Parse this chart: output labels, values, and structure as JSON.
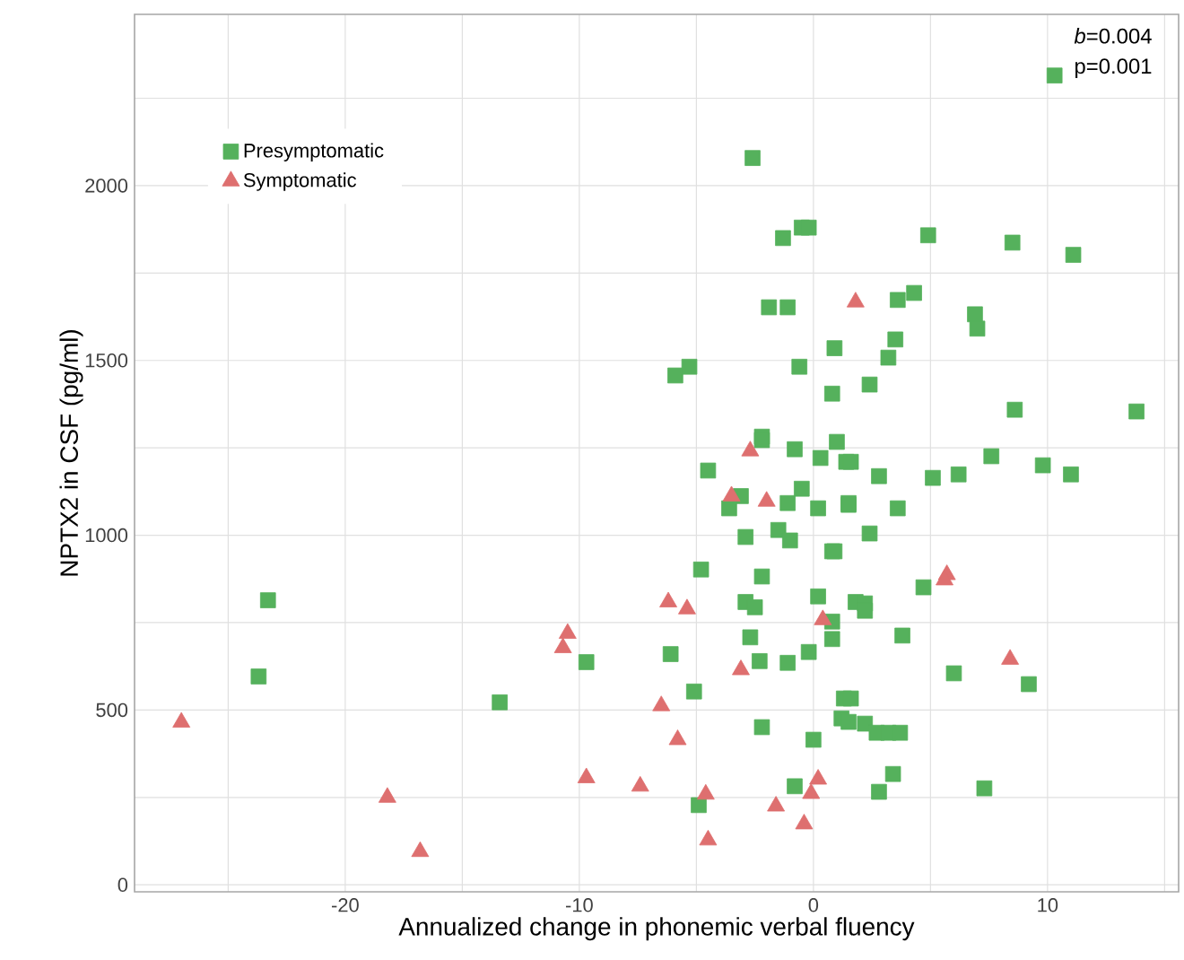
{
  "chart_data": {
    "type": "scatter",
    "xlabel": "Annualized change in phonemic verbal fluency",
    "ylabel": "NPTX2 in CSF (pg/ml)",
    "annotations": [
      "*b*=0.004",
      "p=0.001"
    ],
    "xlim": [
      -29,
      15.6
    ],
    "ylim": [
      -20,
      2490
    ],
    "xticks": [
      {
        "value": -25,
        "label": null
      },
      -20,
      {
        "value": -15,
        "label": null
      },
      -10,
      {
        "value": -5,
        "label": null
      },
      0,
      {
        "value": 5,
        "label": null
      },
      10,
      {
        "value": 15,
        "label": null
      }
    ],
    "yticks": [
      0,
      {
        "value": 250,
        "label": null
      },
      500,
      {
        "value": 750,
        "label": null
      },
      1000,
      {
        "value": 1250,
        "label": null
      },
      1500,
      {
        "value": 1750,
        "label": null
      },
      2000,
      {
        "value": 2250,
        "label": null
      }
    ],
    "grid": true,
    "legend": "top left",
    "series": [
      {
        "name": "Presymptomatic",
        "color": "#55b15c",
        "marker": "square",
        "x": [
          10.3,
          -2.6,
          -1.3,
          -0.5,
          -0.2,
          4.9,
          8.5,
          11.1,
          -1.9,
          -1.1,
          3.6,
          4.3,
          6.9,
          7.0,
          3.5,
          3.2,
          0.9,
          -0.6,
          -5.9,
          -5.3,
          0.8,
          2.4,
          8.6,
          13.8,
          -2.2,
          -2.2,
          -0.8,
          1.0,
          0.3,
          1.4,
          1.6,
          -4.5,
          2.8,
          5.1,
          6.2,
          7.6,
          9.8,
          11.0,
          -3.1,
          -3.6,
          -1.1,
          -0.5,
          0.2,
          1.5,
          1.5,
          3.6,
          -2.9,
          -1.5,
          -1.0,
          2.4,
          0.8,
          0.9,
          -4.8,
          -2.2,
          4.7,
          -2.9,
          -2.5,
          0.2,
          1.8,
          2.2,
          2.2,
          0.8,
          0.8,
          -2.7,
          3.8,
          -6.1,
          -2.3,
          -1.1,
          -0.2,
          6.0,
          9.2,
          -5.1,
          1.3,
          1.6,
          1.2,
          1.5,
          2.2,
          2.7,
          3.2,
          3.7,
          -2.2,
          0.0,
          -4.9,
          -0.8,
          2.8,
          3.4,
          7.3,
          -23.3,
          -23.7,
          -13.4,
          -9.7
        ],
        "values": [
          2315,
          2079,
          1850,
          1880,
          1880,
          1858,
          1837,
          1802,
          1652,
          1652,
          1673,
          1693,
          1632,
          1591,
          1560,
          1508,
          1535,
          1482,
          1457,
          1482,
          1405,
          1431,
          1359,
          1354,
          1282,
          1272,
          1246,
          1267,
          1221,
          1210,
          1210,
          1185,
          1169,
          1164,
          1174,
          1226,
          1200,
          1174,
          1112,
          1077,
          1092,
          1133,
          1077,
          1087,
          1092,
          1077,
          995,
          1015,
          985,
          1005,
          954,
          954,
          902,
          882,
          851,
          809,
          794,
          825,
          809,
          805,
          784,
          753,
          703,
          708,
          713,
          660,
          640,
          635,
          666,
          605,
          574,
          553,
          533,
          533,
          476,
          466,
          461,
          435,
          435,
          435,
          451,
          415,
          228,
          282,
          266,
          317,
          276,
          814,
          596,
          522,
          637
        ]
      },
      {
        "name": "Symptomatic",
        "color": "#de6f6f",
        "marker": "triangle",
        "x": [
          1.8,
          -2.7,
          -3.5,
          -2.0,
          5.7,
          5.6,
          -6.2,
          -5.4,
          0.4,
          -3.1,
          8.4,
          -6.5,
          -5.8,
          -7.4,
          -4.6,
          0.2,
          -0.1,
          -1.6,
          -0.4,
          -4.5,
          -27.0,
          -18.2,
          -16.8,
          -10.5,
          -10.7,
          -9.7
        ],
        "values": [
          1667,
          1241,
          1112,
          1097,
          887,
          872,
          809,
          789,
          758,
          615,
          645,
          512,
          415,
          282,
          259,
          302,
          261,
          225,
          174,
          128,
          465,
          250,
          95,
          719,
          678,
          306
        ]
      }
    ]
  }
}
